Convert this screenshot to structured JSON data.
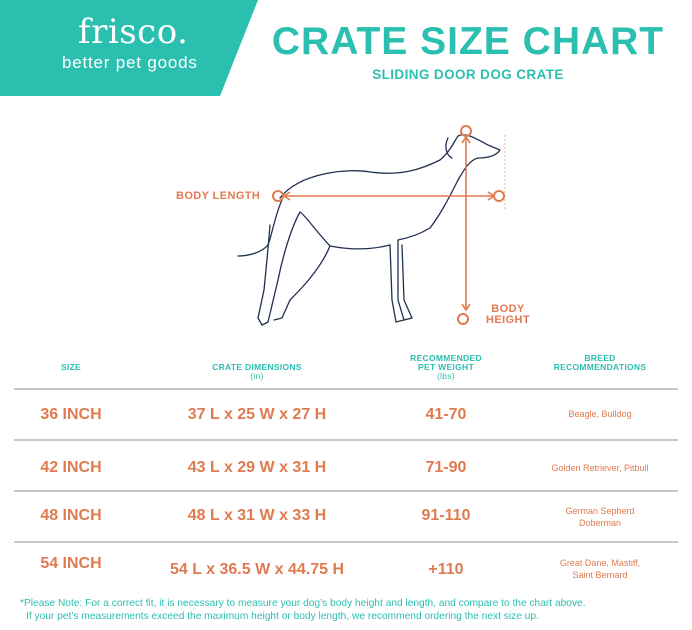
{
  "brand": {
    "name": "frisco.",
    "tagline": "better pet goods",
    "color": "#2bbfb0"
  },
  "header": {
    "title": "CRATE SIZE CHART",
    "subtitle": "SLIDING DOOR DOG CRATE"
  },
  "diagram": {
    "body_length_label": "BODY LENGTH",
    "body_height_label_1": "BODY",
    "body_height_label_2": "HEIGHT",
    "accent": "#e07a50",
    "outline": "#1f3050"
  },
  "table": {
    "headers": {
      "size": "SIZE",
      "dims": "CRATE DIMENSIONS",
      "dims_unit": "(in)",
      "weight_1": "RECOMMENDED",
      "weight_2": "PET WEIGHT",
      "weight_unit": "(lbs)",
      "breed_1": "BREED",
      "breed_2": "RECOMMENDATIONS"
    },
    "rows": [
      {
        "size": "36 INCH",
        "dims": "37 L x 25 W x 27 H",
        "weight": "41-70",
        "breed_1": "Beagle, Bulldog",
        "breed_2": ""
      },
      {
        "size": "42 INCH",
        "dims": "43 L x 29 W x 31 H",
        "weight": "71-90",
        "breed_1": "Golden Retriever, Pitbull",
        "breed_2": ""
      },
      {
        "size": "48 INCH",
        "dims": "48 L x 31 W x 33 H",
        "weight": "91-110",
        "breed_1": "German Sepherd",
        "breed_2": "Doberman"
      },
      {
        "size": "54 INCH",
        "dims": "54 L x 36.5 W x 44.75 H",
        "weight": "+110",
        "breed_1": "Great Dane, Mastiff,",
        "breed_2": "Saint Bernard"
      }
    ]
  },
  "note": {
    "line_1": "*Please Note: For a correct fit, it is necessary to measure your dog’s body height and length, and compare to the chart above.",
    "line_2": "If your pet’s measurements exceed the maximum height or body length, we recommend ordering the next size up."
  }
}
